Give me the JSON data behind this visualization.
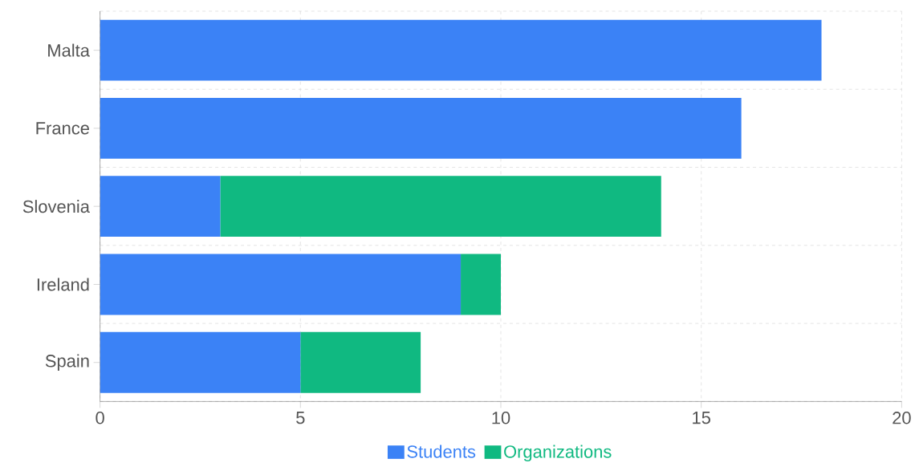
{
  "chart_data": {
    "type": "bar",
    "orientation": "horizontal",
    "stacked": true,
    "categories": [
      "Malta",
      "France",
      "Slovenia",
      "Ireland",
      "Spain"
    ],
    "series": [
      {
        "name": "Students",
        "color": "#3b82f6",
        "values": [
          18,
          16,
          3,
          9,
          5
        ]
      },
      {
        "name": "Organizations",
        "color": "#10b981",
        "values": [
          0,
          0,
          11,
          1,
          3
        ]
      }
    ],
    "xlim": [
      0,
      20
    ],
    "xticks": [
      0,
      5,
      10,
      15,
      20
    ],
    "grid": true,
    "legend": "bottom"
  }
}
